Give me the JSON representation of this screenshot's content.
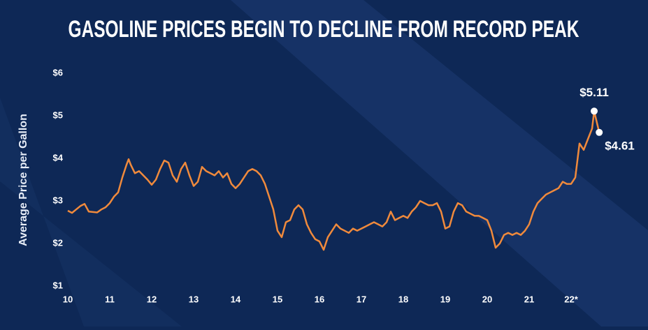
{
  "chart_data": {
    "type": "line",
    "title": "GASOLINE PRICES BEGIN TO DECLINE FROM RECORD PEAK",
    "y_label": "Average Price per Gallon",
    "xlim": [
      10,
      22.8
    ],
    "xticks": [
      10,
      11,
      12,
      13,
      14,
      15,
      16,
      17,
      18,
      19,
      20,
      21,
      {
        "value": 22,
        "label": "22*"
      }
    ],
    "ylim": [
      1,
      6
    ],
    "yticks": [
      {
        "value": 1,
        "label": "$1"
      },
      {
        "value": 2,
        "label": "$2"
      },
      {
        "value": 3,
        "label": "$3"
      },
      {
        "value": 4,
        "label": "$4"
      },
      {
        "value": 5,
        "label": "$5"
      },
      {
        "value": 6,
        "label": "$6"
      }
    ],
    "x": [
      10.0,
      10.1,
      10.2,
      10.3,
      10.4,
      10.5,
      10.6,
      10.7,
      10.8,
      10.9,
      11.0,
      11.1,
      11.2,
      11.3,
      11.4,
      11.45,
      11.5,
      11.6,
      11.7,
      11.8,
      11.9,
      12.0,
      12.1,
      12.2,
      12.3,
      12.4,
      12.5,
      12.6,
      12.7,
      12.8,
      12.9,
      13.0,
      13.1,
      13.2,
      13.3,
      13.4,
      13.5,
      13.6,
      13.7,
      13.8,
      13.9,
      14.0,
      14.1,
      14.2,
      14.3,
      14.4,
      14.5,
      14.6,
      14.7,
      14.8,
      14.9,
      15.0,
      15.1,
      15.2,
      15.3,
      15.4,
      15.5,
      15.6,
      15.7,
      15.8,
      15.9,
      16.0,
      16.1,
      16.2,
      16.3,
      16.4,
      16.5,
      16.6,
      16.7,
      16.8,
      16.9,
      17.0,
      17.1,
      17.2,
      17.3,
      17.4,
      17.5,
      17.6,
      17.7,
      17.8,
      17.9,
      18.0,
      18.1,
      18.2,
      18.3,
      18.4,
      18.5,
      18.6,
      18.7,
      18.8,
      18.9,
      19.0,
      19.1,
      19.2,
      19.3,
      19.4,
      19.5,
      19.6,
      19.7,
      19.8,
      19.9,
      20.0,
      20.1,
      20.2,
      20.3,
      20.4,
      20.5,
      20.6,
      20.7,
      20.8,
      20.9,
      21.0,
      21.1,
      21.2,
      21.3,
      21.4,
      21.5,
      21.6,
      21.7,
      21.8,
      21.9,
      22.0,
      22.1,
      22.2,
      22.3,
      22.4,
      22.5,
      22.55,
      22.67
    ],
    "series": [
      {
        "color": "#f08a3c",
        "values": [
          2.77,
          2.72,
          2.8,
          2.88,
          2.93,
          2.75,
          2.74,
          2.73,
          2.8,
          2.85,
          2.95,
          3.1,
          3.2,
          3.55,
          3.85,
          3.98,
          3.85,
          3.65,
          3.7,
          3.6,
          3.5,
          3.38,
          3.5,
          3.75,
          3.95,
          3.9,
          3.6,
          3.45,
          3.75,
          3.9,
          3.6,
          3.35,
          3.45,
          3.8,
          3.7,
          3.65,
          3.6,
          3.7,
          3.55,
          3.65,
          3.4,
          3.3,
          3.4,
          3.55,
          3.7,
          3.75,
          3.7,
          3.6,
          3.4,
          3.1,
          2.8,
          2.3,
          2.15,
          2.5,
          2.55,
          2.8,
          2.9,
          2.8,
          2.45,
          2.25,
          2.1,
          2.05,
          1.85,
          2.15,
          2.3,
          2.45,
          2.35,
          2.3,
          2.25,
          2.35,
          2.3,
          2.35,
          2.4,
          2.45,
          2.5,
          2.45,
          2.4,
          2.5,
          2.75,
          2.55,
          2.6,
          2.65,
          2.6,
          2.75,
          2.85,
          3.0,
          2.95,
          2.9,
          2.9,
          2.95,
          2.75,
          2.35,
          2.4,
          2.75,
          2.95,
          2.9,
          2.75,
          2.7,
          2.65,
          2.65,
          2.6,
          2.55,
          2.3,
          1.9,
          2.0,
          2.2,
          2.25,
          2.2,
          2.25,
          2.2,
          2.3,
          2.45,
          2.75,
          2.95,
          3.05,
          3.15,
          3.2,
          3.25,
          3.3,
          3.45,
          3.4,
          3.4,
          3.55,
          4.35,
          4.2,
          4.45,
          4.7,
          5.11,
          4.61
        ]
      }
    ],
    "annotations": [
      {
        "x": 22.55,
        "y": 5.11,
        "label": "$5.11"
      },
      {
        "x": 22.67,
        "y": 4.61,
        "label": "$4.61"
      }
    ]
  }
}
